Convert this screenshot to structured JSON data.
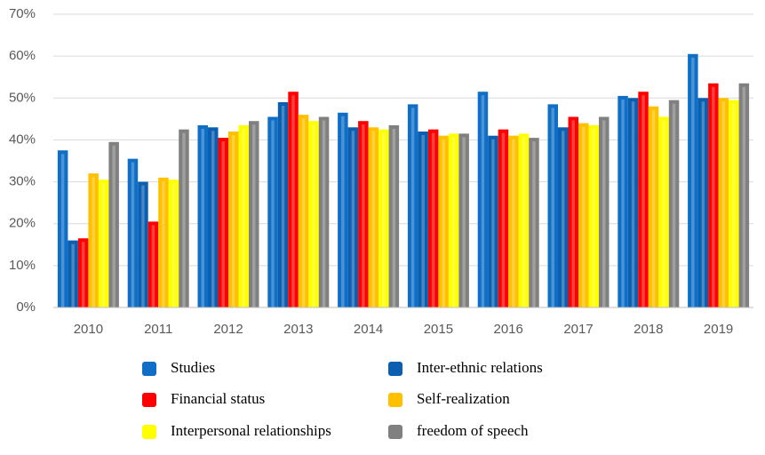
{
  "chart_data": {
    "type": "bar",
    "categories": [
      "2010",
      "2011",
      "2012",
      "2013",
      "2014",
      "2015",
      "2016",
      "2017",
      "2018",
      "2019"
    ],
    "series": [
      {
        "name": "Studies",
        "color": "#0f6fc6",
        "values": [
          37.5,
          35.5,
          43.5,
          45.5,
          46.5,
          48.5,
          51.5,
          48.5,
          50.5,
          60.5
        ]
      },
      {
        "name": "Inter-ethnic relations",
        "color": "#0a5fb0",
        "values": [
          16,
          30,
          43,
          49,
          43,
          42,
          41,
          43,
          50,
          50
        ]
      },
      {
        "name": "Financial status",
        "color": "#ff0000",
        "values": [
          16.5,
          20.5,
          40.5,
          51.5,
          44.5,
          42.5,
          42.5,
          45.5,
          51.5,
          53.5
        ]
      },
      {
        "name": "Self-realization",
        "color": "#ffc000",
        "values": [
          32,
          31,
          42,
          46,
          43,
          41,
          41,
          44,
          48,
          50
        ]
      },
      {
        "name": "Interpersonal relationships",
        "color": "#ffff00",
        "values": [
          30.5,
          30.5,
          43.5,
          44.5,
          42.5,
          41.5,
          41.5,
          43.5,
          45.5,
          49.5
        ]
      },
      {
        "name": "freedom of speech",
        "color": "#808080",
        "values": [
          39.5,
          42.5,
          44.5,
          45.5,
          43.5,
          41.5,
          40.5,
          45.5,
          49.5,
          53.5
        ]
      }
    ],
    "ylim": [
      0,
      70
    ],
    "yticks": [
      {
        "value": 0,
        "label": "0%"
      },
      {
        "value": 10,
        "label": "10%"
      },
      {
        "value": 20,
        "label": "20%"
      },
      {
        "value": 30,
        "label": "30%"
      },
      {
        "value": 40,
        "label": "40%"
      },
      {
        "value": 50,
        "label": "50%"
      },
      {
        "value": 60,
        "label": "60%"
      },
      {
        "value": 70,
        "label": "70%"
      }
    ],
    "grid": true
  }
}
